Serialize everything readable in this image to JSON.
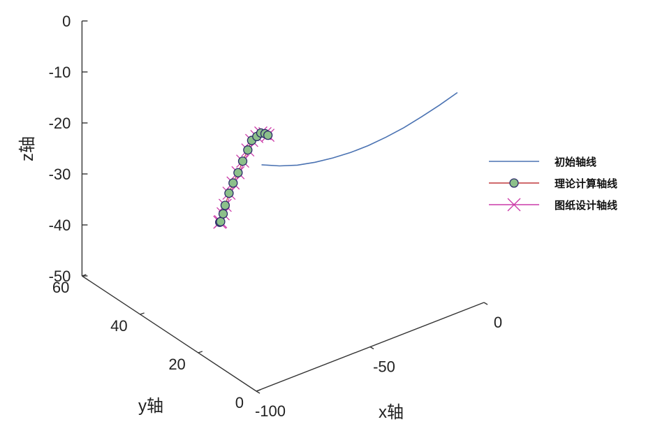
{
  "chart_data": {
    "type": "line3d",
    "axes": {
      "x": {
        "label": "x轴",
        "ticks": [
          {
            "value": 0,
            "label": "0"
          },
          {
            "value": -50,
            "label": "-50"
          },
          {
            "value": -100,
            "label": "-100"
          }
        ],
        "range": [
          -100,
          0
        ]
      },
      "y": {
        "label": "y轴",
        "ticks": [
          {
            "value": 0,
            "label": "0"
          },
          {
            "value": 20,
            "label": "20"
          },
          {
            "value": 40,
            "label": "40"
          },
          {
            "value": 60,
            "label": "60"
          }
        ],
        "range": [
          0,
          60
        ]
      },
      "z": {
        "label": "z轴",
        "ticks": [
          {
            "value": 0,
            "label": "0"
          },
          {
            "value": -10,
            "label": "-10"
          },
          {
            "value": -20,
            "label": "-20"
          },
          {
            "value": -30,
            "label": "-30"
          },
          {
            "value": -40,
            "label": "-40"
          },
          {
            "value": -50,
            "label": "-50"
          }
        ],
        "range": [
          -50,
          0
        ]
      }
    },
    "legend": {
      "position": "right"
    },
    "series": [
      {
        "name": "初始轴线",
        "color": "#4a72b2",
        "marker": "none",
        "points": [
          [
            -11.7,
            0,
            -6.8
          ],
          [
            -19.5,
            0,
            -7.9
          ],
          [
            -27.3,
            0,
            -8.8
          ],
          [
            -35.2,
            0,
            -9.6
          ],
          [
            -43.0,
            0,
            -10.1
          ],
          [
            -50.8,
            0,
            -10.4
          ],
          [
            -58.6,
            0,
            -10.4
          ],
          [
            -66.4,
            0,
            -10.1
          ],
          [
            -74.2,
            0,
            -9.6
          ],
          [
            -82.0,
            0,
            -8.8
          ],
          [
            -89.8,
            0,
            -7.6
          ],
          [
            -97.7,
            0,
            -6.0
          ]
        ]
      },
      {
        "name": "理论计算轴线",
        "color": "#c0393b",
        "marker": "circle",
        "marker_fill": "#8cc08a",
        "points": [
          [
            -39.5,
            60.0,
            -50.0
          ],
          [
            -46.9,
            53.9,
            -46.3
          ],
          [
            -52.3,
            48.8,
            -41.9
          ],
          [
            -57.8,
            43.8,
            -37.4
          ],
          [
            -62.1,
            39.1,
            -32.5
          ],
          [
            -66.3,
            34.4,
            -28.0
          ],
          [
            -70.0,
            29.8,
            -23.6
          ],
          [
            -73.7,
            25.3,
            -19.0
          ],
          [
            -77.2,
            20.8,
            -14.5
          ],
          [
            -81.1,
            16.4,
            -10.3
          ],
          [
            -84.2,
            12.2,
            -7.4
          ],
          [
            -87.8,
            8.0,
            -4.5
          ],
          [
            -91.2,
            3.9,
            -2.5
          ],
          [
            -94.9,
            0.0,
            -0.7
          ]
        ]
      },
      {
        "name": "图纸设计轴线",
        "color": "#cc3aa8",
        "marker": "x",
        "points": [
          [
            -39.5,
            60.0,
            -50.0
          ],
          [
            -46.9,
            53.9,
            -46.3
          ],
          [
            -52.3,
            48.8,
            -41.9
          ],
          [
            -57.8,
            43.8,
            -37.4
          ],
          [
            -62.1,
            39.1,
            -32.5
          ],
          [
            -66.3,
            34.4,
            -28.0
          ],
          [
            -70.0,
            29.8,
            -23.6
          ],
          [
            -73.7,
            25.3,
            -19.0
          ],
          [
            -77.2,
            20.8,
            -14.5
          ],
          [
            -81.1,
            16.4,
            -10.3
          ],
          [
            -84.2,
            12.2,
            -7.4
          ],
          [
            -87.8,
            8.0,
            -4.5
          ],
          [
            -91.2,
            3.9,
            -2.5
          ],
          [
            -94.9,
            0.0,
            -0.7
          ]
        ]
      }
    ]
  }
}
